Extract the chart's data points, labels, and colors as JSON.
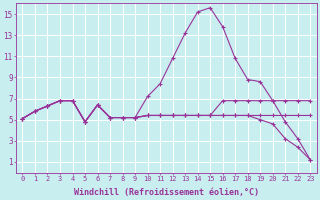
{
  "background_color": "#c8eef0",
  "grid_color": "#aadddd",
  "line_color": "#993399",
  "xlabel": "Windchill (Refroidissement éolien,°C)",
  "xlim": [
    -0.5,
    23.5
  ],
  "ylim": [
    0,
    16
  ],
  "xticks": [
    0,
    1,
    2,
    3,
    4,
    5,
    6,
    7,
    8,
    9,
    10,
    11,
    12,
    13,
    14,
    15,
    16,
    17,
    18,
    19,
    20,
    21,
    22,
    23
  ],
  "yticks": [
    1,
    3,
    5,
    7,
    9,
    11,
    13,
    15
  ],
  "series": [
    [
      5.1,
      5.8,
      6.3,
      6.8,
      6.8,
      4.8,
      6.4,
      5.2,
      5.2,
      5.2,
      7.2,
      8.4,
      10.8,
      13.2,
      15.2,
      15.6,
      13.8,
      10.8,
      8.8,
      8.6,
      6.8,
      4.8,
      3.2,
      1.2
    ],
    [
      5.1,
      5.8,
      6.3,
      6.8,
      6.8,
      4.8,
      6.4,
      5.2,
      5.2,
      5.2,
      5.4,
      5.4,
      5.4,
      5.4,
      5.4,
      5.4,
      5.4,
      5.4,
      5.4,
      5.4,
      5.4,
      5.4,
      5.4,
      5.4
    ],
    [
      5.1,
      5.8,
      6.3,
      6.8,
      6.8,
      4.8,
      6.4,
      5.2,
      5.2,
      5.2,
      5.4,
      5.4,
      5.4,
      5.4,
      5.4,
      5.4,
      5.4,
      5.4,
      5.4,
      5.0,
      4.6,
      3.2,
      2.4,
      1.2
    ],
    [
      5.1,
      5.8,
      6.3,
      6.8,
      6.8,
      4.8,
      6.4,
      5.2,
      5.2,
      5.2,
      5.4,
      5.4,
      5.4,
      5.4,
      5.4,
      5.4,
      6.8,
      6.8,
      6.8,
      6.8,
      6.8,
      6.8,
      6.8,
      6.8
    ]
  ],
  "xlabel_fontsize": 6,
  "tick_fontsize": 5,
  "ylabel_fontsize": 6
}
